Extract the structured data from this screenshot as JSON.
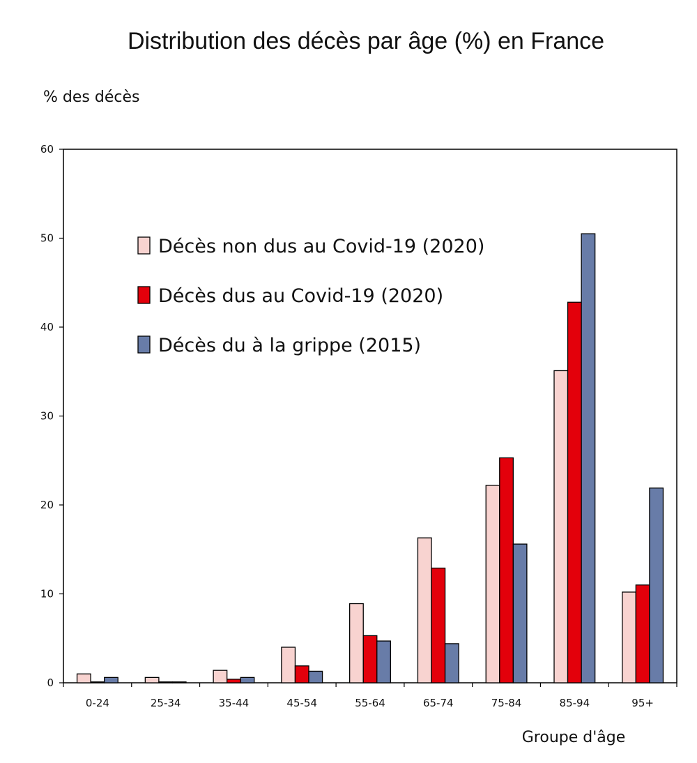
{
  "chart_data": {
    "type": "bar",
    "title": "Distribution des décès par âge (%) en France",
    "ylabel": "% des décès",
    "xlabel": "Groupe d'âge",
    "ylim": [
      0,
      60
    ],
    "yticks": [
      0,
      10,
      20,
      30,
      40,
      50,
      60
    ],
    "categories": [
      "0-24",
      "25-34",
      "35-44",
      "45-54",
      "55-64",
      "65-74",
      "75-84",
      "85-94",
      "95+"
    ],
    "series": [
      {
        "name": "Décès non dus au Covid-19 (2020)",
        "color": "#f8d3d0",
        "values": [
          1.0,
          0.6,
          1.4,
          4.0,
          8.9,
          16.3,
          22.2,
          35.1,
          10.2
        ]
      },
      {
        "name": "Décès dus au Covid-19 (2020)",
        "color": "#e3000b",
        "values": [
          0.1,
          0.1,
          0.4,
          1.9,
          5.3,
          12.9,
          25.3,
          42.8,
          11.0
        ]
      },
      {
        "name": "Décès du à la grippe (2015)",
        "color": "#687ca8",
        "values": [
          0.6,
          0.1,
          0.6,
          1.3,
          4.7,
          4.4,
          15.6,
          50.5,
          21.9
        ]
      }
    ],
    "legend_position": "top-left-inside",
    "grid": false
  }
}
